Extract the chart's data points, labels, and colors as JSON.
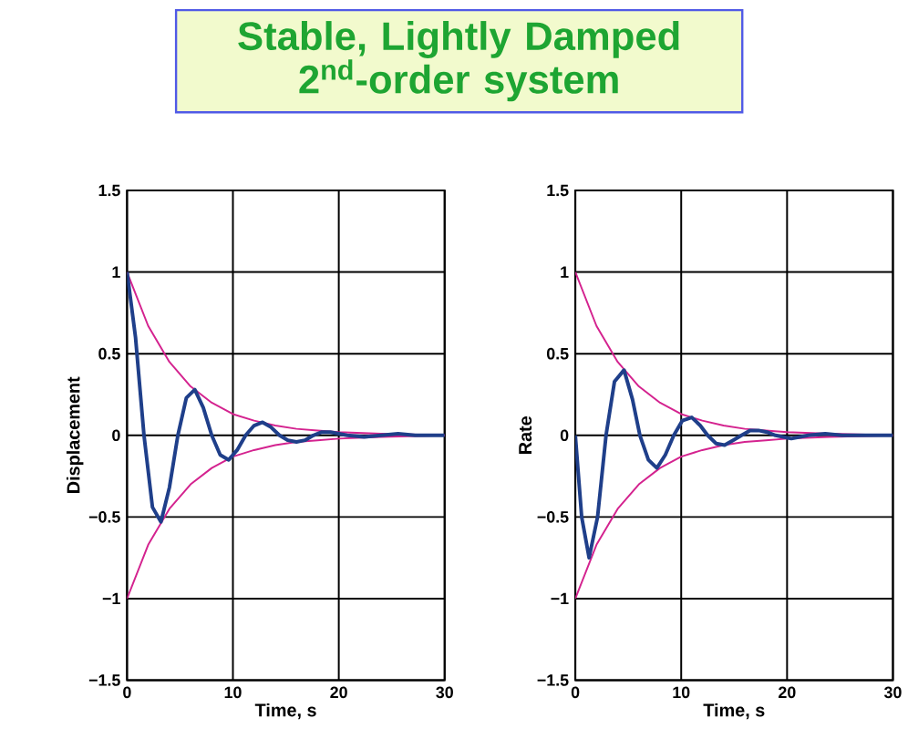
{
  "chart_data": [
    {
      "type": "line",
      "title": "Stable, Lightly Damped 2$^{nd}$-order system",
      "xlabel": "Time, s",
      "ylabel": "Displacement",
      "xlim": [
        0,
        30
      ],
      "ylim": [
        -1.5,
        1.5
      ],
      "xticks": [
        0,
        10,
        20,
        30
      ],
      "yticks": [
        {
          "value": -1.5,
          "label": "−1.5"
        },
        {
          "value": -1,
          "label": "−1"
        },
        {
          "value": -0.5,
          "label": "−0.5"
        },
        0,
        0.5,
        1,
        1.5
      ],
      "grid": true,
      "series": [
        {
          "color": "#d4238f",
          "x": [
            0,
            2,
            4,
            6,
            8,
            10,
            12,
            14,
            16,
            18,
            20,
            24,
            30
          ],
          "values": [
            1,
            0.67,
            0.45,
            0.3,
            0.2,
            0.13,
            0.09,
            0.06,
            0.04,
            0.03,
            0.02,
            0.01,
            0
          ]
        },
        {
          "color": "#d4238f",
          "x": [
            0,
            2,
            4,
            6,
            8,
            10,
            12,
            14,
            16,
            18,
            20,
            24,
            30
          ],
          "values": [
            -1,
            -0.67,
            -0.45,
            -0.3,
            -0.2,
            -0.13,
            -0.09,
            -0.06,
            -0.04,
            -0.03,
            -0.02,
            -0.01,
            0
          ]
        },
        {
          "color": "#1f3f8a",
          "x": [
            0,
            0.8,
            1.6,
            2.4,
            3.2,
            4.0,
            4.8,
            5.6,
            6.4,
            7.2,
            8.0,
            8.8,
            9.6,
            10.4,
            11.2,
            12.0,
            12.8,
            13.6,
            14.4,
            15.2,
            16.0,
            16.8,
            17.6,
            18.4,
            19.2,
            20.8,
            22.4,
            24.0,
            25.6,
            27.2,
            30
          ],
          "values": [
            1,
            0.6,
            0,
            -0.44,
            -0.53,
            -0.32,
            0,
            0.23,
            0.28,
            0.17,
            0,
            -0.12,
            -0.15,
            -0.09,
            0,
            0.06,
            0.08,
            0.05,
            0,
            -0.03,
            -0.04,
            -0.03,
            0,
            0.02,
            0.02,
            0,
            -0.01,
            0,
            0.01,
            0,
            0
          ]
        }
      ]
    },
    {
      "type": "line",
      "xlabel": "Time, s",
      "ylabel": "Rate",
      "xlim": [
        0,
        30
      ],
      "ylim": [
        -1.5,
        1.5
      ],
      "xticks": [
        0,
        10,
        20,
        30
      ],
      "yticks": [
        {
          "value": -1.5,
          "label": "−1.5"
        },
        {
          "value": -1,
          "label": "−1"
        },
        {
          "value": -0.5,
          "label": "−0.5"
        },
        0,
        0.5,
        1,
        1.5
      ],
      "grid": true,
      "series": [
        {
          "color": "#d4238f",
          "x": [
            0,
            2,
            4,
            6,
            8,
            10,
            12,
            14,
            16,
            18,
            20,
            24,
            30
          ],
          "values": [
            1,
            0.67,
            0.45,
            0.3,
            0.2,
            0.13,
            0.09,
            0.06,
            0.04,
            0.03,
            0.02,
            0.01,
            0
          ]
        },
        {
          "color": "#d4238f",
          "x": [
            0,
            2,
            4,
            6,
            8,
            10,
            12,
            14,
            16,
            18,
            20,
            24,
            30
          ],
          "values": [
            -1,
            -0.67,
            -0.45,
            -0.3,
            -0.2,
            -0.13,
            -0.09,
            -0.06,
            -0.04,
            -0.03,
            -0.02,
            -0.01,
            0
          ]
        },
        {
          "color": "#1f3f8a",
          "x": [
            0,
            0.6,
            1.3,
            2.1,
            2.9,
            3.7,
            4.6,
            5.4,
            6.1,
            6.9,
            7.7,
            8.5,
            9.3,
            10.1,
            11.0,
            11.8,
            12.5,
            13.3,
            14.1,
            14.9,
            15.7,
            16.5,
            17.3,
            18.1,
            18.9,
            20.4,
            22.0,
            23.6,
            25.2,
            30
          ],
          "values": [
            0,
            -0.5,
            -0.75,
            -0.5,
            0,
            0.33,
            0.4,
            0.22,
            0,
            -0.15,
            -0.2,
            -0.12,
            0,
            0.09,
            0.11,
            0.06,
            0,
            -0.05,
            -0.06,
            -0.03,
            0,
            0.03,
            0.03,
            0.02,
            0,
            -0.02,
            0,
            0.01,
            0,
            0
          ]
        }
      ]
    }
  ]
}
